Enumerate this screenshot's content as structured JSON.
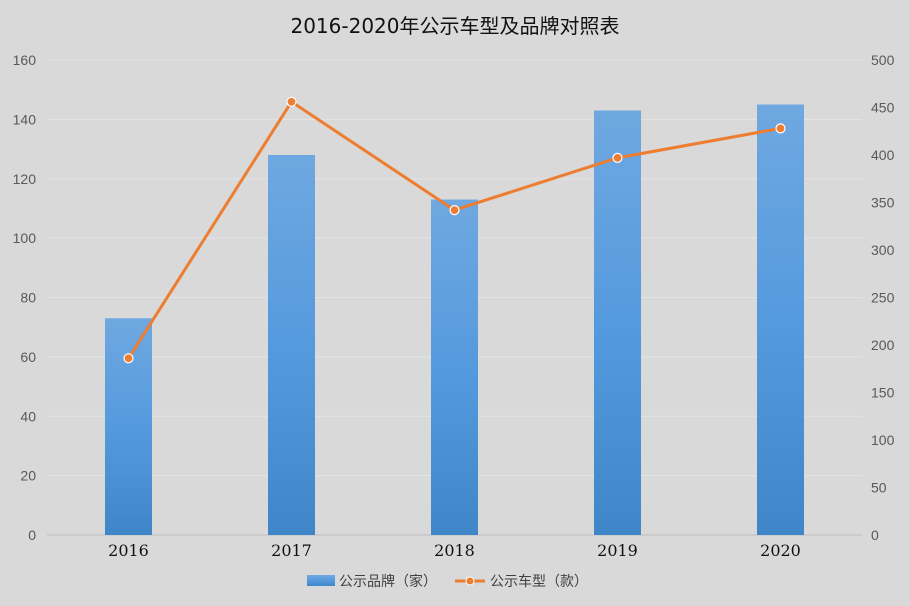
{
  "chart_data": {
    "type": "bar",
    "title": "2016-2020年公示车型及品牌对照表",
    "categories": [
      "2016",
      "2017",
      "2018",
      "2019",
      "2020"
    ],
    "series": [
      {
        "name": "公示品牌（家）",
        "type": "bar",
        "axis": "left",
        "values": [
          73,
          128,
          113,
          143,
          145
        ],
        "color": "#5b9bd5"
      },
      {
        "name": "公示车型（款）",
        "type": "line",
        "axis": "right",
        "values": [
          186,
          456,
          342,
          397,
          428
        ],
        "color": "#ed7d31"
      }
    ],
    "y_left": {
      "ylim": [
        0,
        160
      ],
      "ticks": [
        "0",
        "20",
        "40",
        "60",
        "80",
        "100",
        "120",
        "140",
        "160"
      ]
    },
    "y_right": {
      "ylim": [
        0,
        500
      ],
      "ticks": [
        "0",
        "50",
        "100",
        "150",
        "200",
        "250",
        "300",
        "350",
        "400",
        "450",
        "500"
      ]
    },
    "grid": true,
    "legend": "bottom"
  }
}
